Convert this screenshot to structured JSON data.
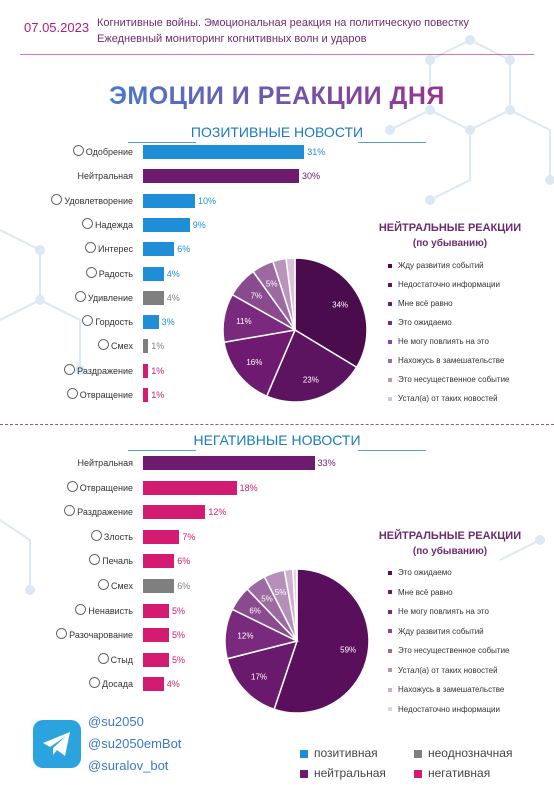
{
  "header": {
    "date": "07.05.2023",
    "line1": "Когнитивные войны. Эмоциональная реакция на политическую повестку",
    "line2": "Ежедневный мониторинг когнитивных волн и ударов"
  },
  "main_title": "ЭМОЦИИ И РЕАКЦИИ ДНЯ",
  "colors": {
    "positive": "#1e8fd6",
    "neutral": "#6e1a6f",
    "ambiguous": "#7f7f7f",
    "negative": "#d21b71",
    "title_start": "#2f8fe0",
    "title_end": "#b01e7a"
  },
  "positive_section": {
    "title": "ПОЗИТИВНЫЕ НОВОСТИ"
  },
  "negative_section": {
    "title": "НЕГАТИВНЫЕ НОВОСТИ"
  },
  "chart_data": [
    {
      "type": "bar",
      "title": "ПОЗИТИВНЫЕ НОВОСТИ",
      "orientation": "horizontal",
      "categories": [
        "Одобрение",
        "Нейтральная",
        "Удовлетворение",
        "Надежда",
        "Интерес",
        "Радость",
        "Удивление",
        "Гордость",
        "Смех",
        "Раздражение",
        "Отвращение"
      ],
      "icons": [
        "face-icon",
        null,
        "face-icon",
        "praying-hands-icon",
        "interest-icon",
        "face-icon",
        "face-icon",
        "trophy-icon",
        "face-icon",
        "face-icon",
        "face-icon"
      ],
      "values": [
        31,
        30,
        10,
        9,
        6,
        4,
        4,
        3,
        1,
        1,
        1
      ],
      "value_labels": [
        "31%",
        "30%",
        "10%",
        "9%",
        "6%",
        "4%",
        "4%",
        "3%",
        "1%",
        "1%",
        "1%"
      ],
      "groups": [
        "positive",
        "neutral",
        "positive",
        "positive",
        "positive",
        "positive",
        "ambiguous",
        "positive",
        "ambiguous",
        "negative",
        "negative"
      ]
    },
    {
      "type": "pie",
      "title": "НЕЙТРАЛЬНЫЕ РЕАКЦИИ",
      "subtitle": "(по убыванию)",
      "labels": [
        "Жду развития событий",
        "Недостаточно информации",
        "Мне всё равно",
        "Это ожидаемо",
        "Не могу повлиять на это",
        "Нахожусь в замешательстве",
        "Это несущественное событие",
        "Устал(а) от таких новостей"
      ],
      "values": [
        34,
        23,
        16,
        11,
        7,
        5,
        3,
        2
      ],
      "value_labels": [
        "34%",
        "23%",
        "16%",
        "11%",
        "7%",
        "5%",
        "",
        ""
      ],
      "colors": [
        "#4b0c4d",
        "#5d1460",
        "#6d1a70",
        "#7a2a7d",
        "#8a4a8e",
        "#9c6aa0",
        "#b995bd",
        "#d9c3db"
      ]
    },
    {
      "type": "bar",
      "title": "НЕГАТИВНЫЕ НОВОСТИ",
      "orientation": "horizontal",
      "categories": [
        "Нейтральная",
        "Отвращение",
        "Раздражение",
        "Злость",
        "Печаль",
        "Смех",
        "Ненависть",
        "Разочарование",
        "Стыд",
        "Досада"
      ],
      "icons": [
        null,
        "face-icon",
        "face-icon",
        "face-icon",
        "face-icon",
        "face-icon",
        "face-icon",
        "face-icon",
        "face-icon",
        "face-icon"
      ],
      "values": [
        33,
        18,
        12,
        7,
        6,
        6,
        5,
        5,
        5,
        4
      ],
      "value_labels": [
        "33%",
        "18%",
        "12%",
        "7%",
        "6%",
        "6%",
        "5%",
        "5%",
        "5%",
        "4%"
      ],
      "groups": [
        "neutral",
        "negative",
        "negative",
        "negative",
        "negative",
        "ambiguous",
        "negative",
        "negative",
        "negative",
        "negative"
      ]
    },
    {
      "type": "pie",
      "title": "НЕЙТРАЛЬНЫЕ РЕАКЦИИ",
      "subtitle": "(по убыванию)",
      "labels": [
        "Это ожидаемо",
        "Мне всё равно",
        "Не могу повлиять на это",
        "Жду развития событий",
        "Это несущественное событие",
        "Устал(а) от таких новостей",
        "Нахожусь в замешательстве",
        "Недостаточно информации"
      ],
      "values": [
        59,
        17,
        12,
        6,
        5,
        5,
        2,
        1
      ],
      "value_labels": [
        "59%",
        "17%",
        "12%",
        "6%",
        "5%",
        "5%",
        "",
        ""
      ],
      "colors": [
        "#5a0f5c",
        "#6a1a6c",
        "#7a2a7d",
        "#8a4a8e",
        "#9c6aa0",
        "#b78fbb",
        "#cdb0cf",
        "#e2d3e3"
      ]
    }
  ],
  "social": {
    "handles": [
      "@su2050",
      "@su2050emBot",
      "@suralov_bot"
    ]
  },
  "legend": {
    "positive": "позитивная",
    "ambiguous": "неоднозначная",
    "neutral": "нейтральная",
    "negative": "негативная"
  }
}
